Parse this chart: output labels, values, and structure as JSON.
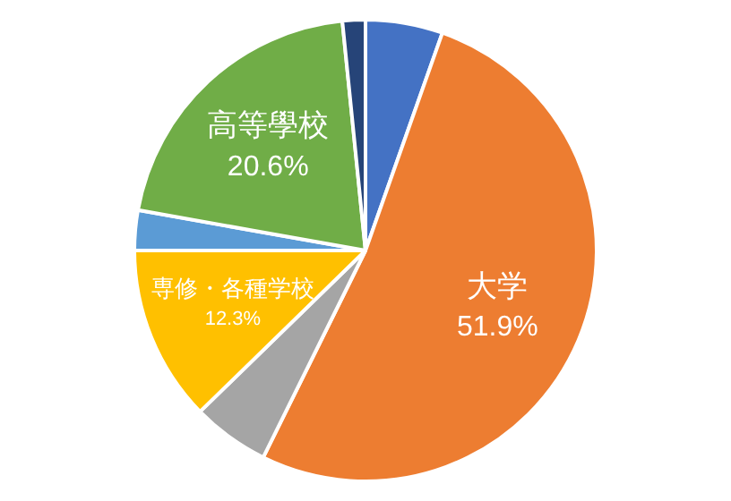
{
  "chart_data": {
    "type": "pie",
    "categories": [
      null,
      "大学",
      null,
      "専修・各種学校",
      null,
      "高等學校",
      null
    ],
    "values": [
      5.4,
      51.9,
      5.4,
      12.3,
      2.8,
      20.6,
      1.6
    ],
    "value_labels": [
      null,
      "51.9%",
      null,
      "12.3%",
      null,
      "20.6%",
      null
    ],
    "colors": [
      "#4472c4",
      "#ed7d31",
      "#a5a5a5",
      "#ffc000",
      "#5b9bd5",
      "#70ad47",
      "#264478"
    ],
    "legend": false
  }
}
